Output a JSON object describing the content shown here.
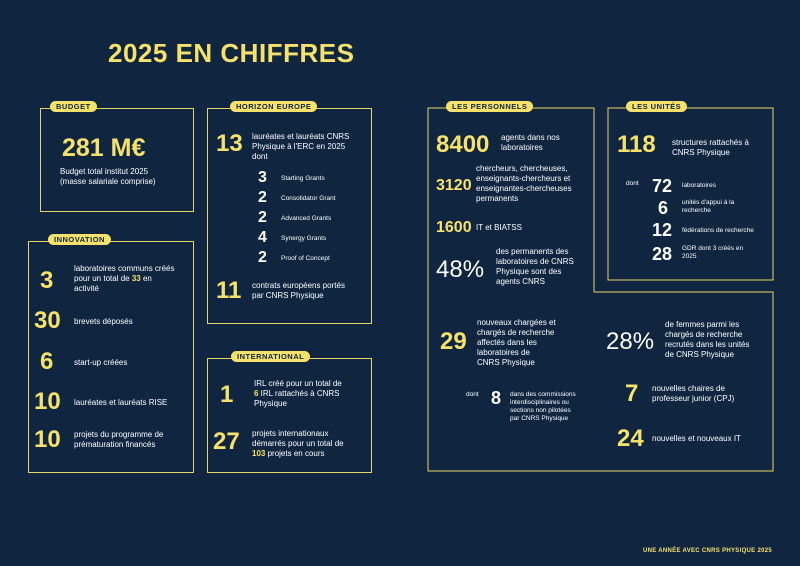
{
  "title": "2025 EN CHIFFRES",
  "budget": {
    "tag": "BUDGET",
    "amount": "281 M€",
    "line1": "Budget total institut 2025",
    "line2": "(masse salariale comprise)"
  },
  "horizon": {
    "tag": "HORIZON EUROPE",
    "laureats_num": "13",
    "laureats_l1": "lauréates et lauréats CNRS",
    "laureats_l2": "Physique à l'ERC en 2025",
    "laureats_l3": "dont",
    "grants": [
      {
        "num": "3",
        "label": "Starting Grants"
      },
      {
        "num": "2",
        "label": "Consolidator Grant"
      },
      {
        "num": "2",
        "label": "Advanced Grants"
      },
      {
        "num": "4",
        "label": "Synergy Grants"
      },
      {
        "num": "2",
        "label": "Proof of Concept"
      }
    ],
    "contrats_num": "11",
    "contrats_l1": "contrats européens portés",
    "contrats_l2": "par CNRS Physique"
  },
  "innovation": {
    "tag": "INNOVATION",
    "items": [
      {
        "num": "3",
        "l1": "laboratoires communs créés",
        "l2a": "pour un total de ",
        "l2b": "33",
        "l2c": " en",
        "l3": "activité"
      },
      {
        "num": "30",
        "l1": "brevets déposés"
      },
      {
        "num": "6",
        "l1": "start-up créées"
      },
      {
        "num": "10",
        "l1": "lauréates et lauréats RISE"
      },
      {
        "num": "10",
        "l1": "projets du programme de",
        "l2": "prématuration financés"
      }
    ]
  },
  "international": {
    "tag": "INTERNATIONAL",
    "irl_num": "1",
    "irl_l1": "IRL créé pour un total de",
    "irl_l2a": "6",
    "irl_l2b": " IRL rattachés à CNRS",
    "irl_l3": "Physique",
    "proj_num": "27",
    "proj_l1": "projets internationaux",
    "proj_l2": "démarrés pour un total de",
    "proj_l3a": "103",
    "proj_l3b": " projets en cours"
  },
  "personnels": {
    "tag": "LES PERSONNELS",
    "agents_num": "8400",
    "agents_l1": "agents dans nos",
    "agents_l2": "laboratoires",
    "cherch_num": "3120",
    "cherch_l1": "chercheurs, chercheuses,",
    "cherch_l2": "enseignants-chercheurs et",
    "cherch_l3": "enseignantes-chercheuses",
    "cherch_l4": "permanents",
    "it_num": "1600",
    "it_label": "IT et BIATSS",
    "pct_num": "48%",
    "pct_l1": "des permanents des",
    "pct_l2": "laboratoires de CNRS",
    "pct_l3": "Physique sont des",
    "pct_l4": "agents CNRS",
    "nouv_num": "29",
    "nouv_l1": "nouveaux chargées et",
    "nouv_l2": "chargés de recherche",
    "nouv_l3": "affectés dans les",
    "nouv_l4": "laboratoires de",
    "nouv_l5": "CNRS Physique",
    "dont_label": "dont",
    "dont_num": "8",
    "dont_l1": "dans des commissions",
    "dont_l2": "interdisciplinaires ou",
    "dont_l3": "sections non pilotées",
    "dont_l4": "par CNRS Physique",
    "femmes_num": "28%",
    "femmes_l1": "de femmes parmi les",
    "femmes_l2": "chargés de recherche",
    "femmes_l3": "recrutés dans les unités",
    "femmes_l4": "de CNRS Physique",
    "chaires_num": "7",
    "chaires_l1": "nouvelles chaires de",
    "chaires_l2": "professeur junior (CPJ)",
    "newit_num": "24",
    "newit_l1": "nouvelles et nouveaux IT"
  },
  "unites": {
    "tag": "LES UNITÉS",
    "struct_num": "118",
    "struct_l1": "structures rattachés à",
    "struct_l2": "CNRS Physique",
    "dont_label": "dont",
    "items": [
      {
        "num": "72",
        "l1": "laboratoires"
      },
      {
        "num": "6",
        "l1": "unités d'appui à la",
        "l2": "recherche"
      },
      {
        "num": "12",
        "l1": "fédérations de recherche"
      },
      {
        "num": "28",
        "l1": "GDR dont 3 créés en",
        "l2": "2025"
      }
    ]
  },
  "footer": "UNE ANNÉE AVEC CNRS PHYSIQUE 2025",
  "colors": {
    "background": "#0f2540",
    "accent": "#f6e26b"
  }
}
